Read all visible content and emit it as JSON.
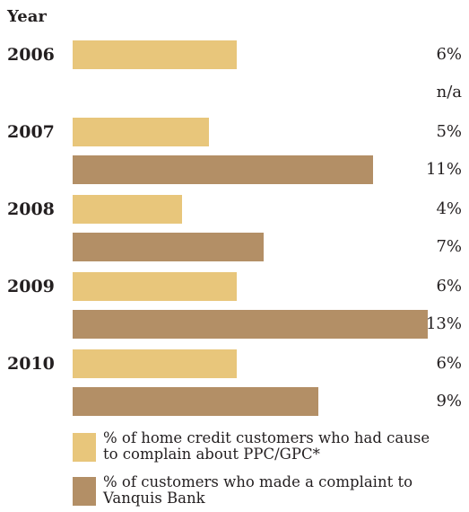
{
  "chart_data": {
    "type": "bar",
    "orientation": "horizontal",
    "category_axis_title": "Year",
    "categories": [
      "2006",
      "2007",
      "2008",
      "2009",
      "2010"
    ],
    "series": [
      {
        "name": "% of home credit customers who had cause to complain about PPC/GPC*",
        "values": [
          6,
          5,
          4,
          6,
          6
        ],
        "labels": [
          "6%",
          "5%",
          "4%",
          "6%",
          "6%"
        ],
        "color": "#e8c67b"
      },
      {
        "name": "% of customers who made a complaint to Vanquis Bank",
        "values": [
          null,
          11,
          7,
          13,
          9
        ],
        "labels": [
          "n/a",
          "11%",
          "7%",
          "13%",
          "9%"
        ],
        "color": "#b38f66"
      }
    ],
    "xlim": [
      0,
      13
    ],
    "grid": false,
    "legend_position": "bottom"
  }
}
